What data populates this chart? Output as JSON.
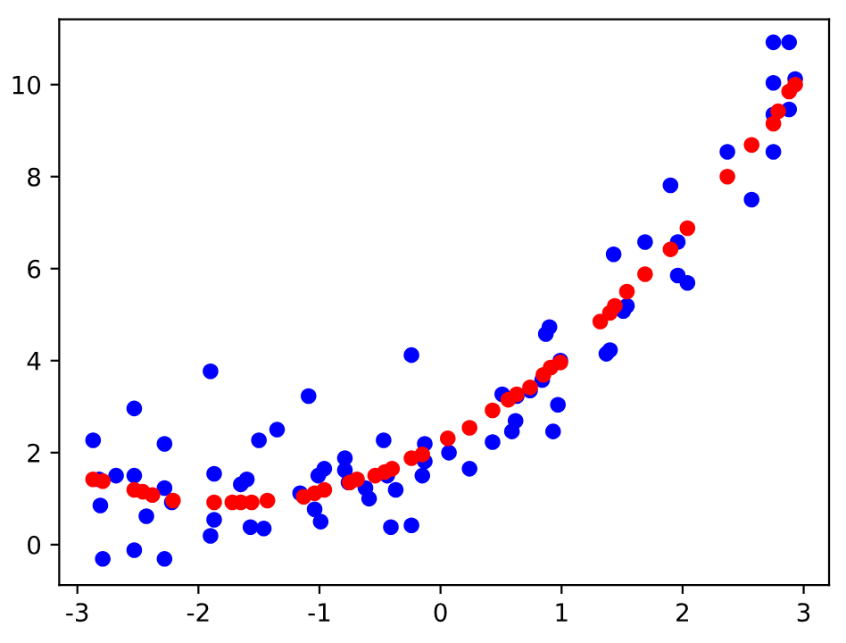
{
  "chart_data": {
    "type": "scatter",
    "xlim": [
      -3.15,
      3.21
    ],
    "ylim": [
      -0.88,
      11.42
    ],
    "xticks": [
      -3,
      -2,
      -1,
      0,
      1,
      2,
      3
    ],
    "yticks": [
      0,
      2,
      4,
      6,
      8,
      10
    ],
    "grid": false,
    "legend": false,
    "marker": "circle",
    "series": [
      {
        "color": "#0000ff",
        "x": [
          -2.87,
          -2.82,
          -2.81,
          -2.79,
          -2.68,
          -2.53,
          -2.53,
          -2.53,
          -2.43,
          -2.28,
          -2.28,
          -2.28,
          -2.22,
          -1.9,
          -1.87,
          -1.9,
          -1.87,
          -1.65,
          -1.6,
          -1.57,
          -1.5,
          -1.46,
          -1.43,
          -1.35,
          -1.16,
          -1.09,
          -1.04,
          -1.01,
          -0.99,
          -0.96,
          -0.79,
          -0.79,
          -0.76,
          -0.69,
          -0.62,
          -0.59,
          -0.47,
          -0.44,
          -0.41,
          -0.37,
          -0.24,
          -0.24,
          -0.15,
          -0.13,
          -0.13,
          0.07,
          0.24,
          0.43,
          0.51,
          0.63,
          0.59,
          0.62,
          0.74,
          0.84,
          0.87,
          0.9,
          0.93,
          0.97,
          0.99,
          1.37,
          1.4,
          1.43,
          1.51,
          1.54,
          1.69,
          1.9,
          1.96,
          2.04,
          1.96,
          2.37,
          2.57,
          2.75,
          2.75,
          2.75,
          2.75,
          2.88,
          2.88,
          2.93
        ],
        "values": [
          2.27,
          1.42,
          0.85,
          -0.31,
          1.5,
          2.96,
          1.5,
          -0.12,
          0.62,
          2.19,
          1.23,
          -0.31,
          0.92,
          3.77,
          1.54,
          0.19,
          0.54,
          1.31,
          1.42,
          0.38,
          2.27,
          0.35,
          null,
          2.5,
          1.12,
          3.23,
          0.77,
          1.5,
          0.5,
          1.65,
          1.88,
          1.62,
          1.35,
          null,
          1.23,
          1.0,
          2.27,
          1.5,
          0.38,
          1.19,
          4.12,
          0.42,
          1.5,
          1.81,
          2.19,
          2.0,
          1.65,
          2.23,
          3.27,
          3.23,
          2.46,
          2.69,
          3.35,
          3.58,
          4.58,
          4.73,
          2.46,
          3.04,
          4.0,
          4.15,
          4.23,
          6.31,
          5.08,
          5.19,
          6.58,
          7.81,
          5.85,
          5.69,
          6.58,
          8.54,
          7.5,
          10.04,
          8.54,
          9.35,
          10.92,
          10.92,
          9.46,
          10.12
        ]
      },
      {
        "color": "#ff0000",
        "x": [
          -2.87,
          -2.79,
          -2.53,
          -2.46,
          -2.38,
          -2.21,
          -1.91,
          -1.87,
          -1.72,
          -1.65,
          -1.56,
          -1.47,
          -1.43,
          -1.13,
          -1.04,
          -0.96,
          -0.75,
          -0.69,
          -0.54,
          -0.46,
          -0.4,
          -0.24,
          -0.15,
          0.06,
          0.24,
          0.43,
          0.56,
          0.63,
          0.74,
          0.85,
          0.91,
          0.99,
          1.32,
          1.4,
          1.44,
          1.54,
          1.69,
          1.9,
          2.04,
          2.37,
          2.57,
          2.75,
          2.79,
          2.88,
          2.93
        ],
        "values": [
          1.42,
          1.38,
          1.19,
          1.15,
          1.08,
          0.96,
          null,
          0.92,
          0.92,
          0.92,
          0.92,
          null,
          0.96,
          1.04,
          1.12,
          1.19,
          1.35,
          1.42,
          1.5,
          1.58,
          1.65,
          1.88,
          1.96,
          2.31,
          2.54,
          2.92,
          3.15,
          3.27,
          3.42,
          3.69,
          3.85,
          3.96,
          4.85,
          5.04,
          5.19,
          5.5,
          5.88,
          6.42,
          6.88,
          8.0,
          8.69,
          9.15,
          9.42,
          9.85,
          10.0
        ]
      }
    ]
  }
}
